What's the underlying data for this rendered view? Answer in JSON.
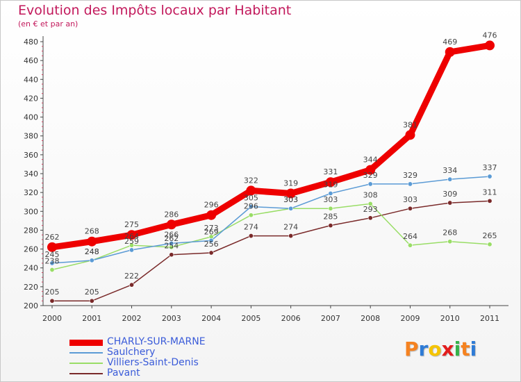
{
  "chart_data": {
    "type": "line",
    "title": "Evolution des Impôts locaux par Habitant",
    "subtitle": "(en € et par an)",
    "xlabel": "",
    "ylabel": "",
    "x": [
      "2000",
      "2001",
      "2002",
      "2003",
      "2004",
      "2005",
      "2006",
      "2007",
      "2008",
      "2009",
      "2010",
      "2011"
    ],
    "ylim": [
      200,
      480
    ],
    "yticks": [
      "200",
      "220",
      "240",
      "260",
      "280",
      "300",
      "320",
      "340",
      "360",
      "380",
      "400",
      "420",
      "440",
      "460",
      "480"
    ],
    "grid": false,
    "legend": "bottom-left",
    "series": [
      {
        "name": "CHARLY-SUR-MARNE",
        "color": "#ee0000",
        "values": [
          262,
          268,
          275,
          286,
          296,
          322,
          319,
          331,
          344,
          381,
          469,
          476
        ],
        "labels": [
          "262",
          "268",
          "275",
          "286",
          "296",
          "322",
          "319",
          "331",
          "344",
          "381",
          "469",
          "476"
        ]
      },
      {
        "name": "Saulchery",
        "color": "#5b9bd5",
        "values": [
          245,
          248,
          259,
          266,
          269,
          305,
          303,
          319,
          329,
          329,
          334,
          337
        ],
        "labels": [
          "245",
          "248",
          "259",
          "266",
          "269",
          "305",
          "303",
          "319",
          "329",
          "329",
          "334",
          "337"
        ]
      },
      {
        "name": "Villiers-Saint-Denis",
        "color": "#99dd66",
        "values": [
          238,
          248,
          264,
          262,
          273,
          296,
          303,
          303,
          308,
          264,
          268,
          265
        ],
        "labels": [
          "238",
          "248",
          "264",
          "262",
          "273",
          "296",
          "303",
          "303",
          "308",
          "264",
          "268",
          "265"
        ]
      },
      {
        "name": "Pavant",
        "color": "#7a2a2a",
        "values": [
          205,
          205,
          222,
          254,
          256,
          274,
          274,
          285,
          293,
          303,
          309,
          311
        ],
        "labels": [
          "205",
          "205",
          "222",
          "254",
          "256",
          "274",
          "274",
          "285",
          "293",
          "303",
          "309",
          "311"
        ]
      }
    ]
  },
  "logo": {
    "letters": [
      "P",
      "r",
      "o",
      "x",
      "i",
      "t",
      "i"
    ],
    "colors": [
      "#f58220",
      "#2e7bd6",
      "#f5c400",
      "#e31d1d",
      "#36b24a",
      "#f58220",
      "#2e7bd6"
    ]
  }
}
